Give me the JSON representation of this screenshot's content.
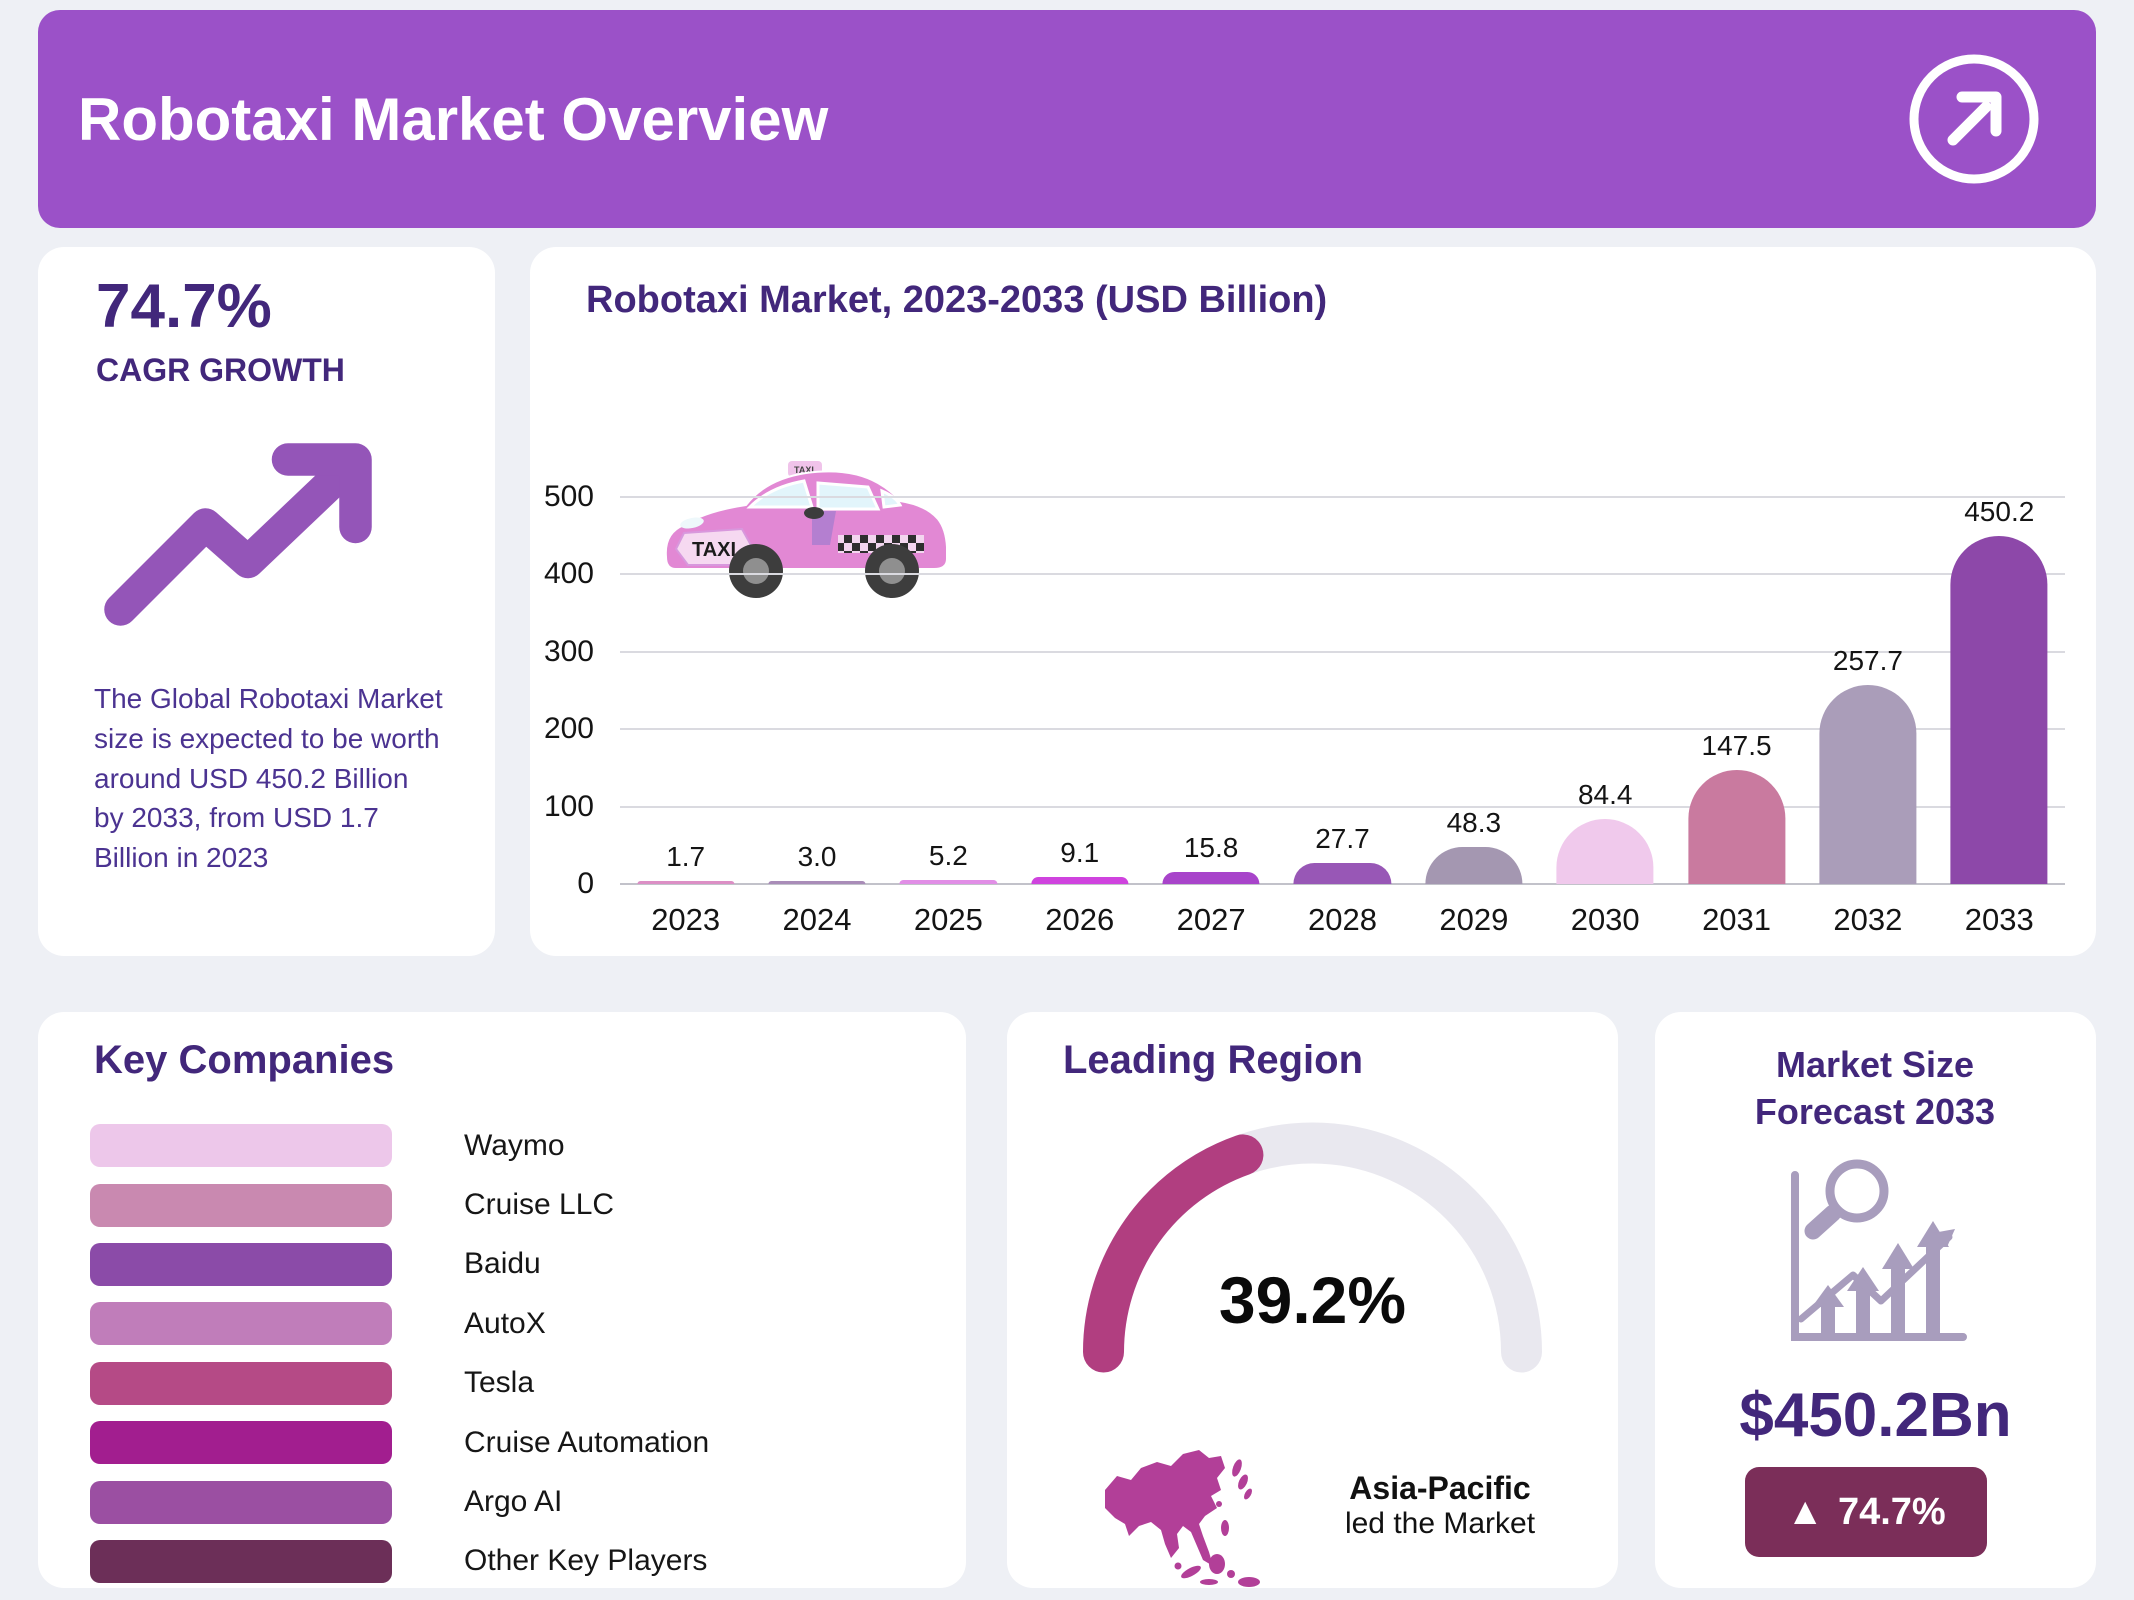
{
  "page": {
    "background": "#eef0f5"
  },
  "header": {
    "title": "Robotaxi Market Overview",
    "background": "#9b51c8",
    "icon": "arrow-up-right-circle"
  },
  "cagr_card": {
    "value": "74.7%",
    "label": "CAGR GROWTH",
    "description": "The Global Robotaxi Market size is expected to be worth around USD 450.2 Billion by 2033, from USD 1.7 Billion in 2023",
    "accent_color": "#9455b8"
  },
  "chart_data": {
    "type": "bar",
    "title": "Robotaxi Market, 2023-2033 (USD Billion)",
    "categories": [
      "2023",
      "2024",
      "2025",
      "2026",
      "2027",
      "2028",
      "2029",
      "2030",
      "2031",
      "2032",
      "2033"
    ],
    "values": [
      1.7,
      3.0,
      5.2,
      9.1,
      15.8,
      27.7,
      48.3,
      84.4,
      147.5,
      257.7,
      450.2
    ],
    "value_labels": [
      "1.7",
      "3.0",
      "5.2",
      "9.1",
      "15.8",
      "27.7",
      "48.3",
      "84.4",
      "147.5",
      "257.7",
      "450.2"
    ],
    "bar_colors": [
      "#dc8fc5",
      "#a98cb8",
      "#e18ee6",
      "#cf43de",
      "#a844ca",
      "#9857b6",
      "#a497b1",
      "#f0c9ec",
      "#c97a9f",
      "#aa9db9",
      "#8d48a9"
    ],
    "xlabel": "",
    "ylabel": "",
    "ylim": [
      0,
      500
    ],
    "yticks": [
      0,
      100,
      200,
      300,
      400,
      500
    ],
    "grid": true,
    "legend": "none",
    "decoration": "pink-taxi-illustration"
  },
  "key_companies": {
    "title": "Key Companies",
    "items": [
      {
        "name": "Waymo",
        "color": "#edc7ea"
      },
      {
        "name": "Cruise LLC",
        "color": "#c989b0"
      },
      {
        "name": "Baidu",
        "color": "#8b4ba8"
      },
      {
        "name": "AutoX",
        "color": "#c07dba"
      },
      {
        "name": "Tesla",
        "color": "#b54a86"
      },
      {
        "name": "Cruise Automation",
        "color": "#a21e8f"
      },
      {
        "name": "Argo AI",
        "color": "#9b4fa2"
      },
      {
        "name": "Other Key Players",
        "color": "#6c2f58"
      }
    ]
  },
  "leading_region": {
    "title": "Leading Region",
    "percent": 39.2,
    "percent_label": "39.2%",
    "region": "Asia-Pacific",
    "region_caption": "led the Market",
    "gauge_color": "#b13e80",
    "track_color": "#e9e8ef",
    "map_color": "#b23f98"
  },
  "market_size": {
    "title": "Market Size Forecast 2033",
    "value": "$450.2Bn",
    "badge_icon": "▲",
    "badge_label": "74.7%",
    "badge_background": "#7b2e59",
    "icon_color": "#a89dbd"
  }
}
